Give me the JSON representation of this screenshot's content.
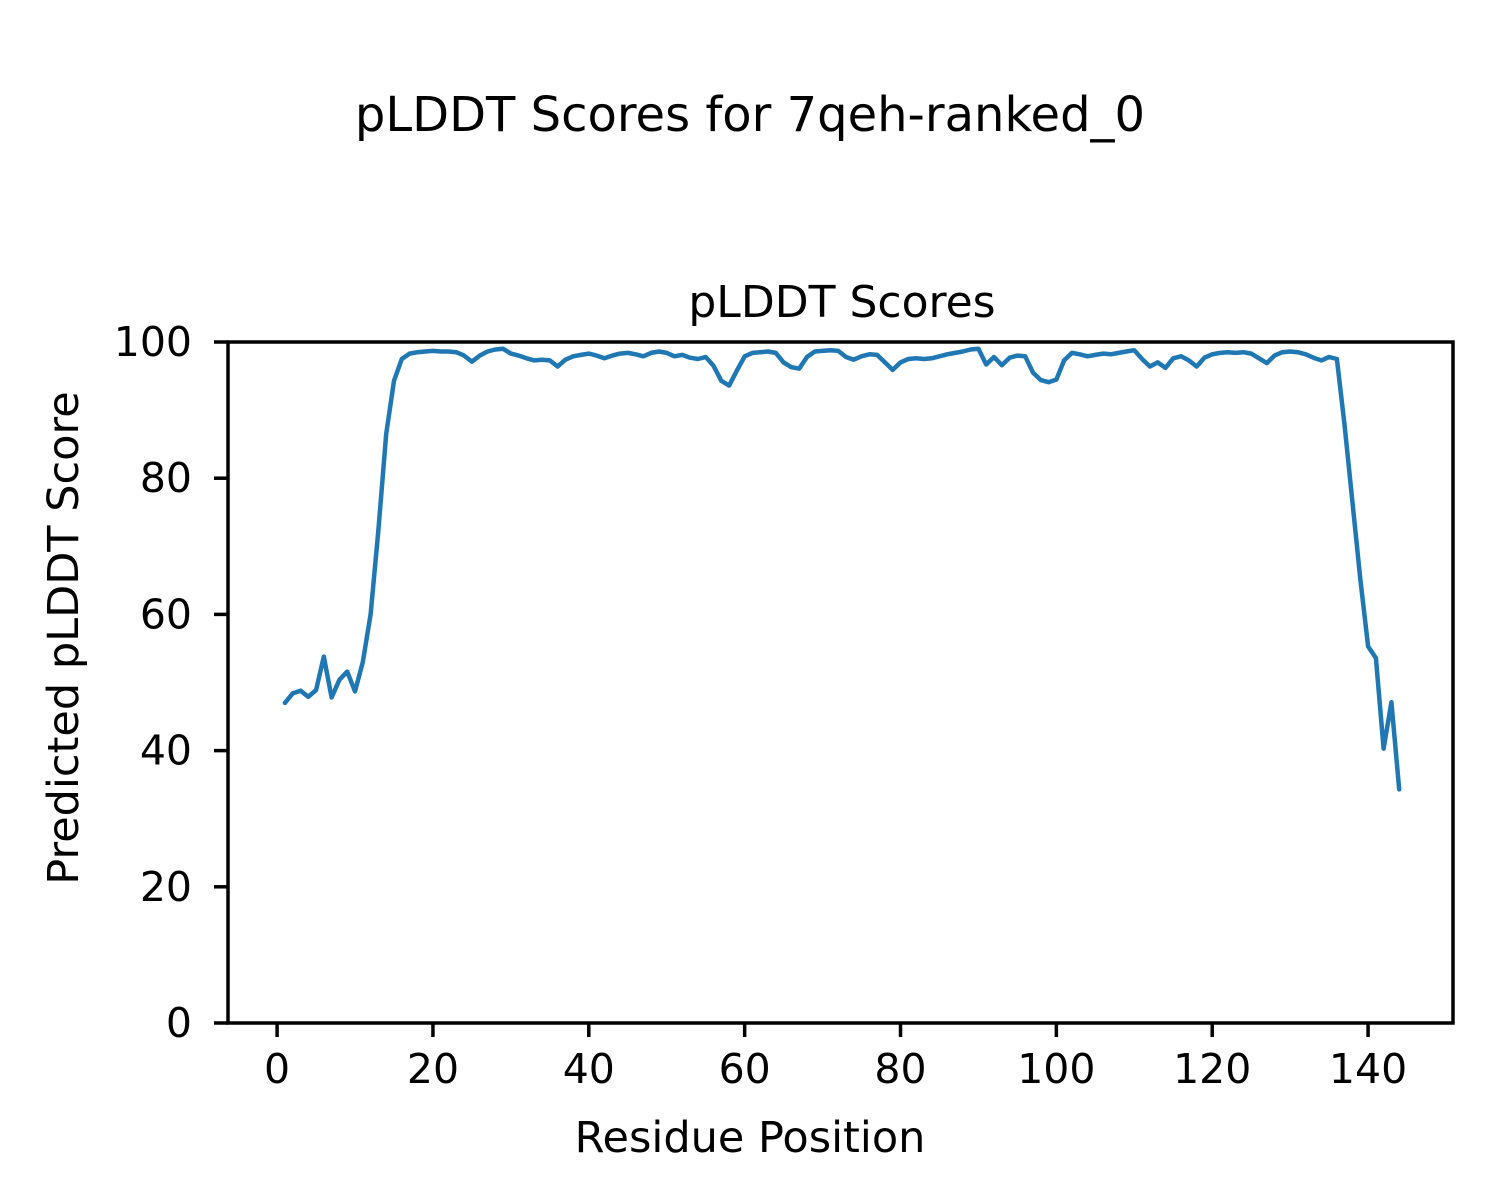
{
  "figure": {
    "suptitle": "pLDDT Scores for 7qeh-ranked_0",
    "background_color": "#ffffff",
    "text_color": "#000000"
  },
  "chart_data": {
    "type": "line",
    "title": "pLDDT Scores",
    "xlabel": "Residue Position",
    "ylabel": "Predicted pLDDT Score",
    "line_color": "#1f77b4",
    "axis_color": "#000000",
    "grid": false,
    "legend": false,
    "xlim": [
      -6.3,
      150.9
    ],
    "ylim": [
      0,
      100
    ],
    "x_ticks": [
      0,
      20,
      40,
      60,
      80,
      100,
      120,
      140
    ],
    "y_ticks": [
      0,
      20,
      40,
      60,
      80,
      100
    ],
    "x_start": 1,
    "x_step": 1,
    "series_name": "pLDDT",
    "values": [
      47.0,
      48.4,
      48.8,
      47.9,
      48.9,
      53.8,
      47.8,
      50.4,
      51.6,
      48.7,
      53.0,
      60.0,
      72.4,
      86.5,
      94.3,
      97.5,
      98.3,
      98.5,
      98.6,
      98.7,
      98.6,
      98.6,
      98.5,
      98.0,
      97.1,
      98.0,
      98.6,
      98.9,
      99.0,
      98.3,
      98.0,
      97.6,
      97.3,
      97.4,
      97.3,
      96.4,
      97.4,
      97.9,
      98.1,
      98.3,
      98.0,
      97.6,
      98.0,
      98.3,
      98.4,
      98.2,
      97.9,
      98.4,
      98.6,
      98.4,
      97.9,
      98.1,
      97.7,
      97.5,
      97.8,
      96.5,
      94.3,
      93.6,
      95.8,
      97.9,
      98.4,
      98.5,
      98.6,
      98.4,
      97.0,
      96.3,
      96.1,
      97.8,
      98.6,
      98.7,
      98.8,
      98.7,
      97.8,
      97.4,
      97.9,
      98.2,
      98.1,
      97.0,
      95.9,
      97.0,
      97.5,
      97.6,
      97.5,
      97.6,
      97.9,
      98.2,
      98.4,
      98.6,
      98.9,
      99.0,
      96.7,
      97.8,
      96.6,
      97.7,
      98.0,
      97.9,
      95.5,
      94.4,
      94.1,
      94.5,
      97.3,
      98.4,
      98.2,
      97.9,
      98.1,
      98.3,
      98.2,
      98.4,
      98.6,
      98.8,
      97.5,
      96.4,
      97.0,
      96.2,
      97.6,
      97.9,
      97.3,
      96.4,
      97.7,
      98.2,
      98.4,
      98.5,
      98.4,
      98.5,
      98.3,
      97.6,
      96.9,
      98.0,
      98.5,
      98.6,
      98.5,
      98.2,
      97.7,
      97.3,
      97.8,
      97.5,
      87.6,
      76.4,
      65.2,
      55.3,
      53.6,
      40.3,
      47.1,
      34.3
    ]
  }
}
